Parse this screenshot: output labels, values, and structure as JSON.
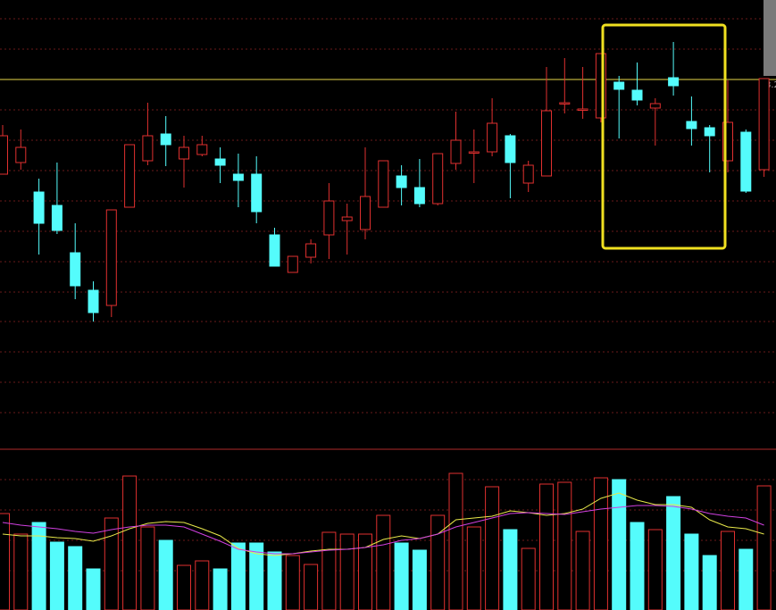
{
  "chart_data": [
    {
      "type": "candlestick",
      "ylim": [
        6.967,
        8.467
      ],
      "reference_line": 8.2,
      "up_color": "#e0302f",
      "down_color": "#54fcfc",
      "reference_color": "#e8d84a",
      "open": [
        7.882,
        7.921,
        7.822,
        7.777,
        7.618,
        7.492,
        7.441,
        7.771,
        7.927,
        8.017,
        7.933,
        7.948,
        7.933,
        7.882,
        7.882,
        7.678,
        7.552,
        7.603,
        7.678,
        7.726,
        7.696,
        7.771,
        7.876,
        7.837,
        7.783,
        7.918,
        7.957,
        7.957,
        8.011,
        7.852,
        7.876,
        8.122,
        8.101,
        8.071,
        8.191,
        8.164,
        8.104,
        8.206,
        8.059,
        8.038,
        7.927,
        8.023,
        7.897
      ],
      "high": [
        8.047,
        8.032,
        7.867,
        7.921,
        7.717,
        7.522,
        7.762,
        7.981,
        8.122,
        8.077,
        8.011,
        8.011,
        7.972,
        7.951,
        7.942,
        7.702,
        7.606,
        7.663,
        7.852,
        7.783,
        7.972,
        7.927,
        7.912,
        7.933,
        7.951,
        8.092,
        8.032,
        8.137,
        8.017,
        7.927,
        8.242,
        8.272,
        8.242,
        8.287,
        8.212,
        8.257,
        8.137,
        8.326,
        8.143,
        8.047,
        8.197,
        8.032,
        8.203
      ],
      "low": [
        7.882,
        7.897,
        7.612,
        7.681,
        7.462,
        7.387,
        7.402,
        7.771,
        7.912,
        7.909,
        7.837,
        7.942,
        7.852,
        7.771,
        7.717,
        7.573,
        7.552,
        7.582,
        7.597,
        7.612,
        7.663,
        7.771,
        7.777,
        7.771,
        7.777,
        7.897,
        7.852,
        7.942,
        7.801,
        7.822,
        7.876,
        8.086,
        8.068,
        8.056,
        8.002,
        8.113,
        7.978,
        8.146,
        7.978,
        7.888,
        7.888,
        7.819,
        7.873
      ],
      "close": [
        8.011,
        7.972,
        7.717,
        7.693,
        7.507,
        7.417,
        7.762,
        7.981,
        8.011,
        7.981,
        7.972,
        7.981,
        7.912,
        7.861,
        7.756,
        7.573,
        7.606,
        7.648,
        7.792,
        7.738,
        7.807,
        7.927,
        7.837,
        7.783,
        7.951,
        7.996,
        7.957,
        8.053,
        7.921,
        7.912,
        8.095,
        8.122,
        8.101,
        8.287,
        8.167,
        8.131,
        8.119,
        8.179,
        8.035,
        8.011,
        8.056,
        7.825,
        8.203
      ]
    },
    {
      "type": "volume",
      "ylim": [
        0,
        180
      ],
      "values": [
        108,
        85,
        98,
        76,
        71,
        46,
        103,
        150,
        93,
        78,
        50,
        55,
        46,
        75,
        75,
        65,
        61,
        51,
        87,
        85,
        85,
        106,
        75,
        67,
        106,
        153,
        93,
        138,
        90,
        69,
        141,
        143,
        88,
        148,
        146,
        98,
        90,
        127,
        85,
        61,
        88,
        68,
        139
      ],
      "series": [
        {
          "color": "#e8e84a",
          "values": [
            85,
            83,
            83,
            81,
            80,
            77,
            83,
            91,
            97,
            99,
            98,
            91,
            83,
            69,
            63,
            61,
            63,
            66,
            68,
            68,
            70,
            79,
            83,
            80,
            85,
            101,
            103,
            105,
            111,
            109,
            106,
            108,
            113,
            125,
            131,
            123,
            118,
            118,
            115,
            101,
            93,
            91,
            85
          ]
        },
        {
          "color": "#d040e0",
          "values": [
            98,
            95,
            93,
            91,
            88,
            86,
            90,
            93,
            95,
            95,
            93,
            85,
            77,
            68,
            65,
            63,
            63,
            65,
            67,
            68,
            70,
            73,
            78,
            80,
            85,
            93,
            98,
            103,
            108,
            109,
            108,
            107,
            110,
            113,
            115,
            117,
            117,
            116,
            113,
            108,
            105,
            103,
            95
          ]
        }
      ]
    }
  ]
}
